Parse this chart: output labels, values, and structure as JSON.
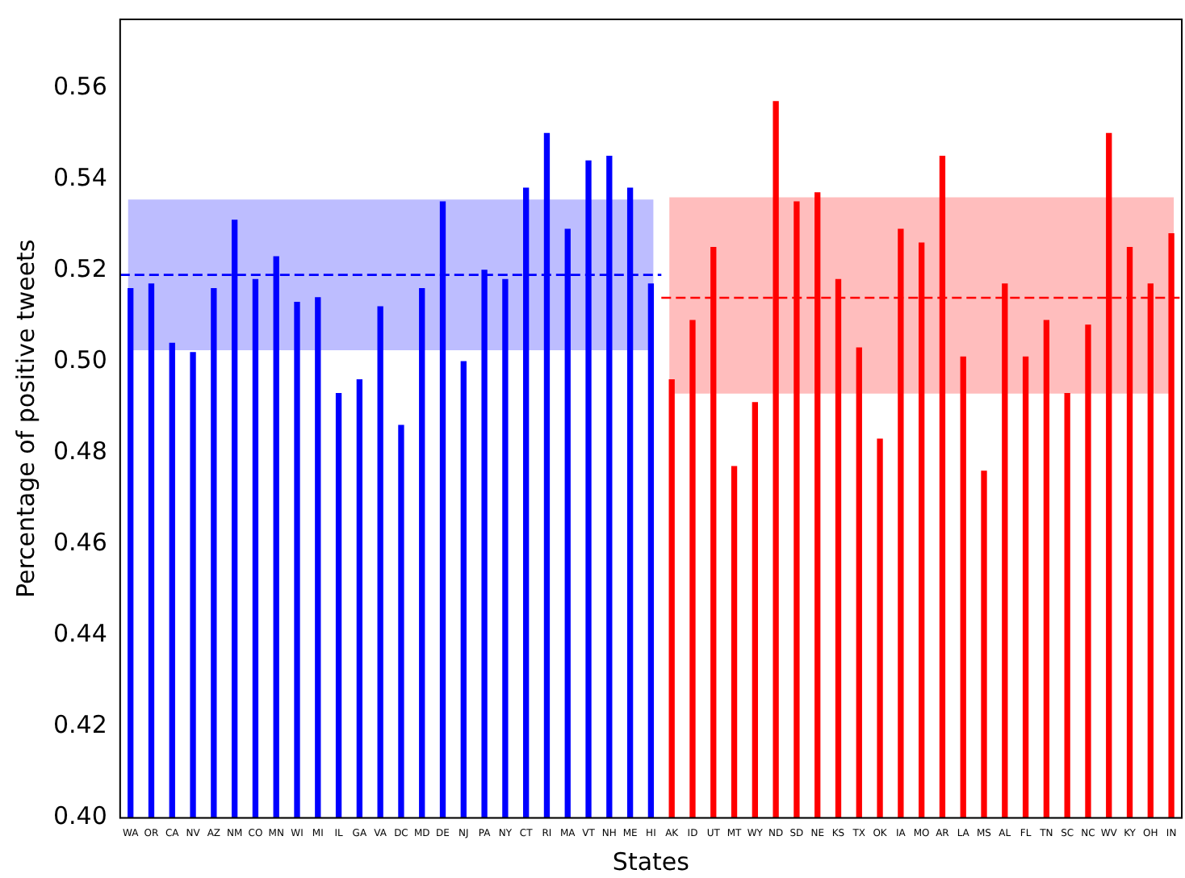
{
  "chart_data": {
    "type": "bar",
    "xlabel": "States",
    "ylabel": "Percentage of positive tweets",
    "categories": [
      "WA",
      "OR",
      "CA",
      "NV",
      "AZ",
      "NM",
      "CO",
      "MN",
      "WI",
      "MI",
      "IL",
      "GA",
      "VA",
      "DC",
      "MD",
      "DE",
      "NJ",
      "PA",
      "NY",
      "CT",
      "RI",
      "MA",
      "VT",
      "NH",
      "ME",
      "HI",
      "AK",
      "ID",
      "UT",
      "MT",
      "WY",
      "ND",
      "SD",
      "NE",
      "KS",
      "TX",
      "OK",
      "IA",
      "MO",
      "AR",
      "LA",
      "MS",
      "AL",
      "FL",
      "TN",
      "SC",
      "NC",
      "WV",
      "KY",
      "OH",
      "IN"
    ],
    "series": [
      {
        "color": "#0000ff",
        "values": [
          0.516,
          0.517,
          0.504,
          0.502,
          0.516,
          0.531,
          0.518,
          0.523,
          0.513,
          0.514,
          0.493,
          0.496,
          0.512,
          0.486,
          0.516,
          0.535,
          0.5,
          0.52,
          0.518,
          0.538,
          0.55,
          0.529,
          0.544,
          0.545,
          0.538,
          0.517,
          null,
          null,
          null,
          null,
          null,
          null,
          null,
          null,
          null,
          null,
          null,
          null,
          null,
          null,
          null,
          null,
          null,
          null,
          null,
          null,
          null,
          null,
          null,
          null,
          null
        ]
      },
      {
        "color": "#ff0000",
        "values": [
          null,
          null,
          null,
          null,
          null,
          null,
          null,
          null,
          null,
          null,
          null,
          null,
          null,
          null,
          null,
          null,
          null,
          null,
          null,
          null,
          null,
          null,
          null,
          null,
          null,
          null,
          0.496,
          0.509,
          0.525,
          0.477,
          0.491,
          0.557,
          0.535,
          0.537,
          0.518,
          0.503,
          0.483,
          0.529,
          0.526,
          0.545,
          0.501,
          0.476,
          0.517,
          0.501,
          0.509,
          0.493,
          0.508,
          0.55,
          0.525,
          0.517,
          0.528
        ]
      }
    ],
    "ylim": [
      0.4,
      0.575
    ],
    "yticks": [
      {
        "value": 0.4,
        "label": "0.40"
      },
      {
        "value": 0.42,
        "label": "0.42"
      },
      {
        "value": 0.44,
        "label": "0.44"
      },
      {
        "value": 0.46,
        "label": "0.46"
      },
      {
        "value": 0.48,
        "label": "0.48"
      },
      {
        "value": 0.5,
        "label": "0.50"
      },
      {
        "value": 0.52,
        "label": "0.52"
      },
      {
        "value": 0.54,
        "label": "0.54"
      },
      {
        "value": 0.56,
        "label": "0.56"
      }
    ],
    "ref_lines": [
      {
        "axis": "y",
        "value": 0.519,
        "color": "#0000ff",
        "line_style": "dashed"
      },
      {
        "axis": "y",
        "value": 0.514,
        "color": "#ff0000",
        "line_style": "dashed"
      }
    ],
    "bands": [
      {
        "axis": "y",
        "from": 0.5025,
        "to": 0.5355,
        "color": "#0000ff"
      },
      {
        "axis": "y",
        "from": 0.493,
        "to": 0.536,
        "color": "#ff0000"
      }
    ],
    "grid": false,
    "legend": false
  }
}
